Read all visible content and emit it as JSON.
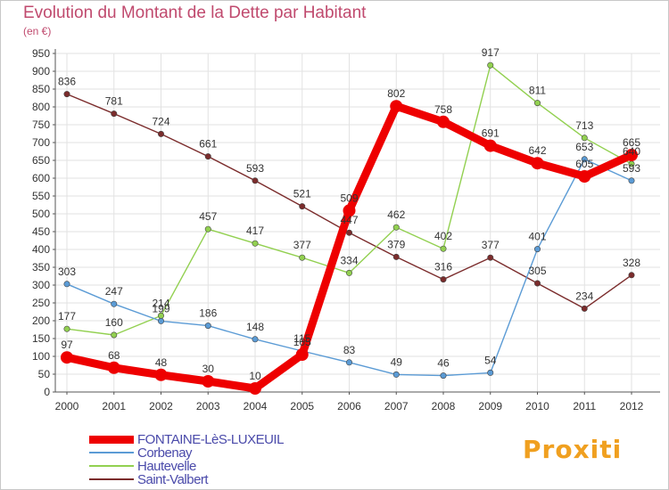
{
  "header": {
    "title": "Evolution du Montant de la Dette par Habitant",
    "subtitle": "(en €)"
  },
  "logo": {
    "text": "Proxiti"
  },
  "chart_data": {
    "type": "line",
    "title": "Evolution du Montant de la Dette par Habitant",
    "subtitle": "(en €)",
    "xlabel": "",
    "ylabel": "",
    "x": [
      "2000",
      "2001",
      "2002",
      "2003",
      "2004",
      "2005",
      "2006",
      "2007",
      "2008",
      "2009",
      "2010",
      "2011",
      "2012"
    ],
    "ylim": [
      0,
      950
    ],
    "yticks": [
      0,
      50,
      100,
      150,
      200,
      250,
      300,
      350,
      400,
      450,
      500,
      550,
      600,
      650,
      700,
      750,
      800,
      850,
      900,
      950
    ],
    "grid": true,
    "legend_position": "bottom-left",
    "series": [
      {
        "name": "FONTAINE-LèS-LUXEUIL",
        "color": "#ee0000",
        "values": [
          97,
          68,
          48,
          30,
          10,
          105,
          509,
          802,
          758,
          691,
          642,
          605,
          665
        ],
        "labels": [
          "97",
          "68",
          "48",
          "30",
          "10",
          "105",
          "509",
          "802",
          "758",
          "691",
          "642",
          "605",
          "665"
        ]
      },
      {
        "name": "Corbenay",
        "color": "#5b9bd5",
        "values": [
          303,
          247,
          199,
          186,
          148,
          115,
          83,
          49,
          46,
          54,
          401,
          653,
          593
        ],
        "labels": [
          "303",
          "247",
          "199",
          "186",
          "148",
          "115",
          "83",
          "49",
          "46",
          "54",
          "401",
          "653",
          "593"
        ]
      },
      {
        "name": "Hautevelle",
        "color": "#92d050",
        "values": [
          177,
          160,
          214,
          457,
          417,
          377,
          334,
          462,
          402,
          917,
          811,
          713,
          640
        ],
        "labels": [
          "177",
          "160",
          "214",
          "457",
          "417",
          "377",
          "334",
          "462",
          "402",
          "917",
          "811",
          "713",
          "640"
        ]
      },
      {
        "name": "Saint-Valbert",
        "color": "#7b2c2c",
        "values": [
          836,
          781,
          724,
          661,
          593,
          521,
          447,
          379,
          316,
          377,
          305,
          234,
          328
        ],
        "labels": [
          "836",
          "781",
          "724",
          "661",
          "593",
          "521",
          "447",
          "379",
          "316",
          "377",
          "305",
          "234",
          "328"
        ]
      }
    ]
  }
}
